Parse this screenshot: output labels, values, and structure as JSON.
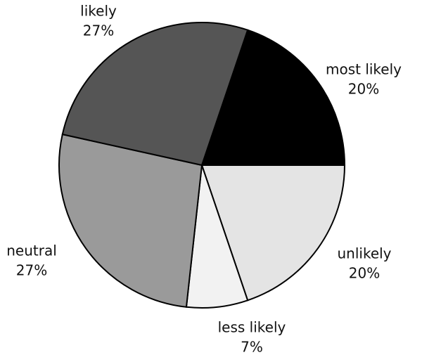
{
  "chart_data": {
    "type": "pie",
    "categories": [
      "most likely",
      "unlikely",
      "less likely",
      "neutral",
      "likely"
    ],
    "values": [
      20,
      20,
      7,
      27,
      27
    ],
    "value_labels": [
      "20%",
      "20%",
      "7%",
      "27%",
      "27%"
    ],
    "colors": [
      "#000000",
      "#e4e4e4",
      "#f2f2f2",
      "#9a9a9a",
      "#555555"
    ]
  }
}
